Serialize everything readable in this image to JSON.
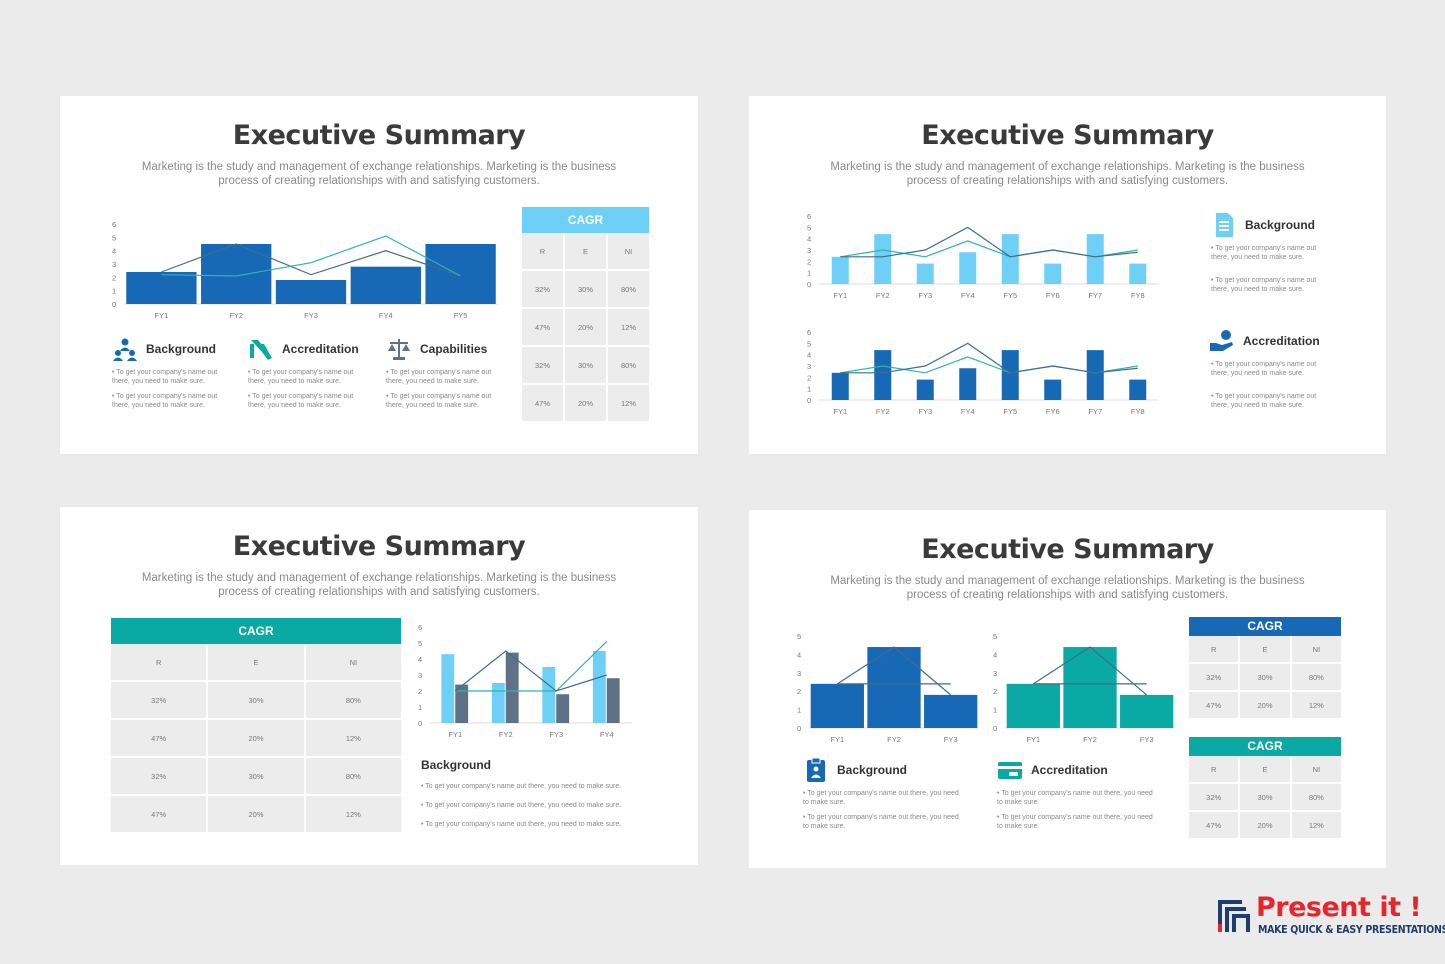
{
  "slide_title": "Executive Summary",
  "slide_subtitle_1": "Marketing is the study and management of exchange relationships. Marketing is the business",
  "slide_subtitle_2": "process of creating relationships with and satisfying customers.",
  "bullet_short_1": "• To get your company's name out",
  "bullet_short_2": "there, you need to make sure.",
  "bullet_long": "• To get your company's name out there, you need to make sure.",
  "bullet_mid_1": "• To get your company's name out there, you need",
  "bullet_mid_2": "to make sure.",
  "colors": {
    "dark_blue": "#1768b5",
    "light_blue": "#6fd0f7",
    "teal": "#0aa9a3",
    "slate": "#5f7186",
    "line_dark": "#3f6f86",
    "line_teal": "#2fb3ad",
    "brand_red": "#e5262a",
    "brand_navy": "#1e3d6d"
  },
  "cagr_table": {
    "title": "CAGR",
    "headers": [
      "R",
      "E",
      "NI"
    ],
    "rows": [
      [
        "32%",
        "30%",
        "80%"
      ],
      [
        "47%",
        "20%",
        "12%"
      ],
      [
        "32%",
        "30%",
        "80%"
      ],
      [
        "47%",
        "20%",
        "12%"
      ]
    ]
  },
  "cagr_table_short": {
    "title": "CAGR",
    "headers": [
      "R",
      "E",
      "NI"
    ],
    "rows": [
      [
        "32%",
        "30%",
        "80%"
      ],
      [
        "47%",
        "20%",
        "12%"
      ]
    ]
  },
  "slide1": {
    "features": [
      {
        "title": "Background",
        "icon": "team-icon"
      },
      {
        "title": "Accreditation",
        "icon": "handshake-icon"
      },
      {
        "title": "Capabilities",
        "icon": "scales-icon"
      }
    ]
  },
  "slide2": {
    "features": [
      {
        "title": "Background",
        "icon": "document-icon"
      },
      {
        "title": "Accreditation",
        "icon": "hand-coin-icon"
      }
    ]
  },
  "slide3": {
    "feature_title": "Background"
  },
  "slide4": {
    "features": [
      {
        "title": "Background",
        "icon": "clipboard-icon"
      },
      {
        "title": "Accreditation",
        "icon": "card-icon"
      }
    ]
  },
  "chart_data": [
    {
      "type": "bar",
      "categories": [
        "FY1",
        "FY2",
        "FY3",
        "FY4",
        "FY5"
      ],
      "series": [
        {
          "values": [
            2.4,
            4.5,
            1.8,
            2.8,
            4.5
          ]
        },
        {
          "values": [
            2.4,
            4.5,
            2.2,
            4.0,
            2.1
          ]
        },
        {
          "values": [
            2.2,
            2.1,
            3.1,
            5.1,
            2.1
          ]
        }
      ],
      "ylim": [
        0,
        6
      ],
      "yticks": [
        0,
        1,
        2,
        3,
        4,
        5,
        6
      ]
    },
    {
      "type": "bar",
      "categories": [
        "FY1",
        "FY2",
        "FY3",
        "FY4",
        "FY5",
        "FY6",
        "FY7",
        "FY8"
      ],
      "series": [
        {
          "values": [
            2.4,
            4.4,
            1.8,
            2.8,
            4.4,
            1.8,
            4.4,
            1.8
          ]
        },
        {
          "values": [
            2.4,
            3.0,
            2.4,
            3.8,
            2.4,
            3.0,
            2.4,
            3.0
          ]
        },
        {
          "values": [
            2.4,
            2.4,
            3.0,
            5.0,
            2.4,
            3.0,
            2.4,
            2.8
          ]
        }
      ],
      "ylim": [
        0,
        6
      ],
      "yticks": [
        0,
        1,
        2,
        3,
        4,
        5,
        6
      ]
    },
    {
      "type": "bar",
      "categories": [
        "FY1",
        "FY2",
        "FY3",
        "FY4",
        "FY5",
        "FY6",
        "FY7",
        "FY8"
      ],
      "series": [
        {
          "values": [
            2.4,
            4.4,
            1.8,
            2.8,
            4.4,
            1.8,
            4.4,
            1.8
          ]
        },
        {
          "values": [
            2.4,
            3.0,
            2.4,
            3.8,
            2.4,
            3.0,
            2.4,
            3.0
          ]
        },
        {
          "values": [
            2.4,
            2.4,
            3.0,
            5.0,
            2.4,
            3.0,
            2.4,
            2.8
          ]
        }
      ],
      "ylim": [
        0,
        6
      ],
      "yticks": [
        0,
        1,
        2,
        3,
        4,
        5,
        6
      ]
    },
    {
      "type": "bar",
      "categories": [
        "FY1",
        "FY2",
        "FY3",
        "FY4"
      ],
      "series": [
        {
          "values": [
            4.3,
            2.5,
            3.5,
            4.5
          ]
        },
        {
          "values": [
            2.4,
            4.4,
            1.8,
            2.8
          ]
        },
        {
          "values": [
            2.0,
            2.0,
            2.0,
            5.1
          ]
        },
        {
          "values": [
            2.0,
            4.5,
            2.0,
            3.0
          ]
        }
      ],
      "ylim": [
        0,
        6
      ],
      "yticks": [
        0,
        1,
        2,
        3,
        4,
        5,
        6
      ]
    },
    {
      "type": "bar",
      "categories": [
        "FY1",
        "FY2",
        "FY3"
      ],
      "series": [
        {
          "values": [
            2.4,
            4.4,
            1.8
          ]
        },
        {
          "values": [
            2.4,
            2.4,
            2.4
          ]
        },
        {
          "values": [
            2.4,
            4.4,
            1.8
          ]
        }
      ],
      "ylim": [
        0,
        5
      ],
      "yticks": [
        0,
        1,
        2,
        3,
        4,
        5
      ]
    },
    {
      "type": "bar",
      "categories": [
        "FY1",
        "FY2",
        "FY3"
      ],
      "series": [
        {
          "values": [
            2.4,
            4.4,
            1.8
          ]
        },
        {
          "values": [
            2.4,
            2.4,
            2.4
          ]
        },
        {
          "values": [
            2.4,
            4.4,
            1.8
          ]
        }
      ],
      "ylim": [
        0,
        5
      ],
      "yticks": [
        0,
        1,
        2,
        3,
        4,
        5
      ]
    }
  ],
  "logo": {
    "title": "Present it !",
    "tagline": "MAKE QUICK & EASY PRESENTATIONS"
  }
}
